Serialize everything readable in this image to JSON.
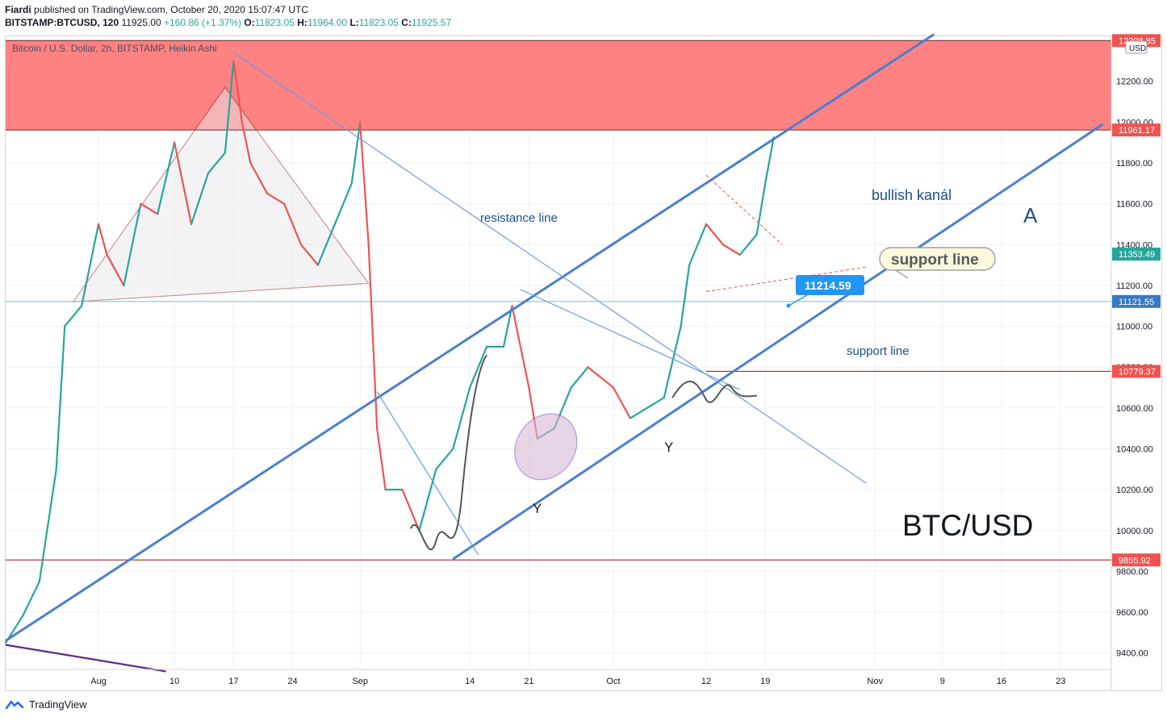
{
  "header": {
    "author": "Fiardi",
    "published_text": "published on TradingView.com, October 20, 2020 15:07:47 UTC",
    "symbol": "BITSTAMP:BTCUSD, 120",
    "price": "11925.00",
    "change": "+160.86 (+1.37%)",
    "o_label": "O:",
    "o_value": "11823.05",
    "h_label": "H:",
    "h_value": "11964.00",
    "l_label": "L:",
    "l_value": "11823.05",
    "c_label": "C:",
    "c_value": "11925.57"
  },
  "legend": "Bitcoin / U.S. Dollar, 2h, BITSTAMP, Heikin Ashi",
  "currency_badge": "USD",
  "footer": {
    "brand": "TradingView"
  },
  "colors": {
    "up": "#26a69a",
    "down": "#ef5350",
    "channel": "#4a7fd0",
    "zone": "#ff7b7b",
    "hline": "#b22222",
    "label_bg": "#2196f3"
  },
  "chart_data": {
    "type": "line",
    "title": "Bitcoin / U.S. Dollar, 2h, BITSTAMP, Heikin Ashi",
    "xlabel": "",
    "ylabel": "",
    "ylim": [
      9320,
      12420
    ],
    "date_range": [
      "2020-07-21",
      "2020-11-29"
    ],
    "x_ticks": [
      {
        "date": "2020-08-01",
        "label": "Aug"
      },
      {
        "date": "2020-08-10",
        "label": "10"
      },
      {
        "date": "2020-08-17",
        "label": "17"
      },
      {
        "date": "2020-08-24",
        "label": "24"
      },
      {
        "date": "2020-09-01",
        "label": "Sep"
      },
      {
        "date": "2020-09-14",
        "label": "14"
      },
      {
        "date": "2020-09-21",
        "label": "21"
      },
      {
        "date": "2020-10-01",
        "label": "Oct"
      },
      {
        "date": "2020-10-12",
        "label": "12"
      },
      {
        "date": "2020-10-19",
        "label": "19"
      },
      {
        "date": "2020-11-01",
        "label": "Nov"
      },
      {
        "date": "2020-11-09",
        "label": "9"
      },
      {
        "date": "2020-11-16",
        "label": "16"
      },
      {
        "date": "2020-11-23",
        "label": "23"
      }
    ],
    "y_ticks": [
      9400,
      9600,
      9800,
      10000,
      10200,
      10400,
      10600,
      10800,
      11000,
      11200,
      11400,
      11600,
      11800,
      12000,
      12200,
      12400
    ],
    "series": [
      {
        "values": [
          [
            "2020-07-21",
            9450
          ],
          [
            "2020-07-23",
            9580
          ],
          [
            "2020-07-25",
            9750
          ],
          [
            "2020-07-27",
            10300
          ],
          [
            "2020-07-28",
            11000
          ],
          [
            "2020-07-30",
            11100
          ],
          [
            "2020-08-01",
            11500
          ],
          [
            "2020-08-02",
            11350
          ],
          [
            "2020-08-04",
            11200
          ],
          [
            "2020-08-06",
            11600
          ],
          [
            "2020-08-08",
            11550
          ],
          [
            "2020-08-10",
            11900
          ],
          [
            "2020-08-12",
            11500
          ],
          [
            "2020-08-14",
            11750
          ],
          [
            "2020-08-16",
            11850
          ],
          [
            "2020-08-17",
            12300
          ],
          [
            "2020-08-18",
            12000
          ],
          [
            "2020-08-19",
            11800
          ],
          [
            "2020-08-21",
            11650
          ],
          [
            "2020-08-23",
            11600
          ],
          [
            "2020-08-25",
            11400
          ],
          [
            "2020-08-27",
            11300
          ],
          [
            "2020-08-29",
            11500
          ],
          [
            "2020-08-31",
            11700
          ],
          [
            "2020-09-01",
            12000
          ],
          [
            "2020-09-02",
            11400
          ],
          [
            "2020-09-03",
            10500
          ],
          [
            "2020-09-04",
            10200
          ],
          [
            "2020-09-06",
            10200
          ],
          [
            "2020-09-08",
            10000
          ],
          [
            "2020-09-10",
            10300
          ],
          [
            "2020-09-12",
            10400
          ],
          [
            "2020-09-14",
            10700
          ],
          [
            "2020-09-16",
            10900
          ],
          [
            "2020-09-18",
            10900
          ],
          [
            "2020-09-19",
            11100
          ],
          [
            "2020-09-21",
            10700
          ],
          [
            "2020-09-22",
            10450
          ],
          [
            "2020-09-24",
            10500
          ],
          [
            "2020-09-26",
            10700
          ],
          [
            "2020-09-28",
            10800
          ],
          [
            "2020-10-01",
            10700
          ],
          [
            "2020-10-03",
            10550
          ],
          [
            "2020-10-05",
            10600
          ],
          [
            "2020-10-07",
            10650
          ],
          [
            "2020-10-09",
            11000
          ],
          [
            "2020-10-10",
            11300
          ],
          [
            "2020-10-12",
            11500
          ],
          [
            "2020-10-14",
            11400
          ],
          [
            "2020-10-16",
            11350
          ],
          [
            "2020-10-18",
            11450
          ],
          [
            "2020-10-19",
            11700
          ],
          [
            "2020-10-20",
            11925
          ]
        ]
      }
    ],
    "price_labels": [
      {
        "value": 12398.85,
        "text": "12398.85",
        "bg": "#ef5350"
      },
      {
        "value": 11961.17,
        "text": "11961.17",
        "bg": "#ef5350"
      },
      {
        "value": 11353.49,
        "text": "11353.49",
        "bg": "#26a69a"
      },
      {
        "value": 11121.55,
        "text": "11121.55",
        "bg": "#3a7bbf"
      },
      {
        "value": 10779.37,
        "text": "10779.37",
        "bg": "#ef5350"
      },
      {
        "value": 9855.92,
        "text": "9855.92",
        "bg": "#ef5350"
      }
    ],
    "resistance_zone": [
      11961.17,
      12398.85
    ],
    "horizontal_levels": [
      {
        "value": 12398.85,
        "color": "#8b3a3a"
      },
      {
        "value": 11961.17,
        "color": "#8b3a3a"
      },
      {
        "value": 11121.55,
        "color": "#7ec8d8"
      },
      {
        "value": 9855.92,
        "color": "#b22222"
      }
    ],
    "annotations": {
      "resistance_line": "resistance line",
      "bullish_channel": "bullish kanál",
      "channel_letter": "A",
      "support_line_callout": "support line",
      "support_line": "support line",
      "price_marker": "11214.59",
      "wave_y1": "Y",
      "wave_y2": "Y",
      "pair": "BTC/USD"
    }
  }
}
